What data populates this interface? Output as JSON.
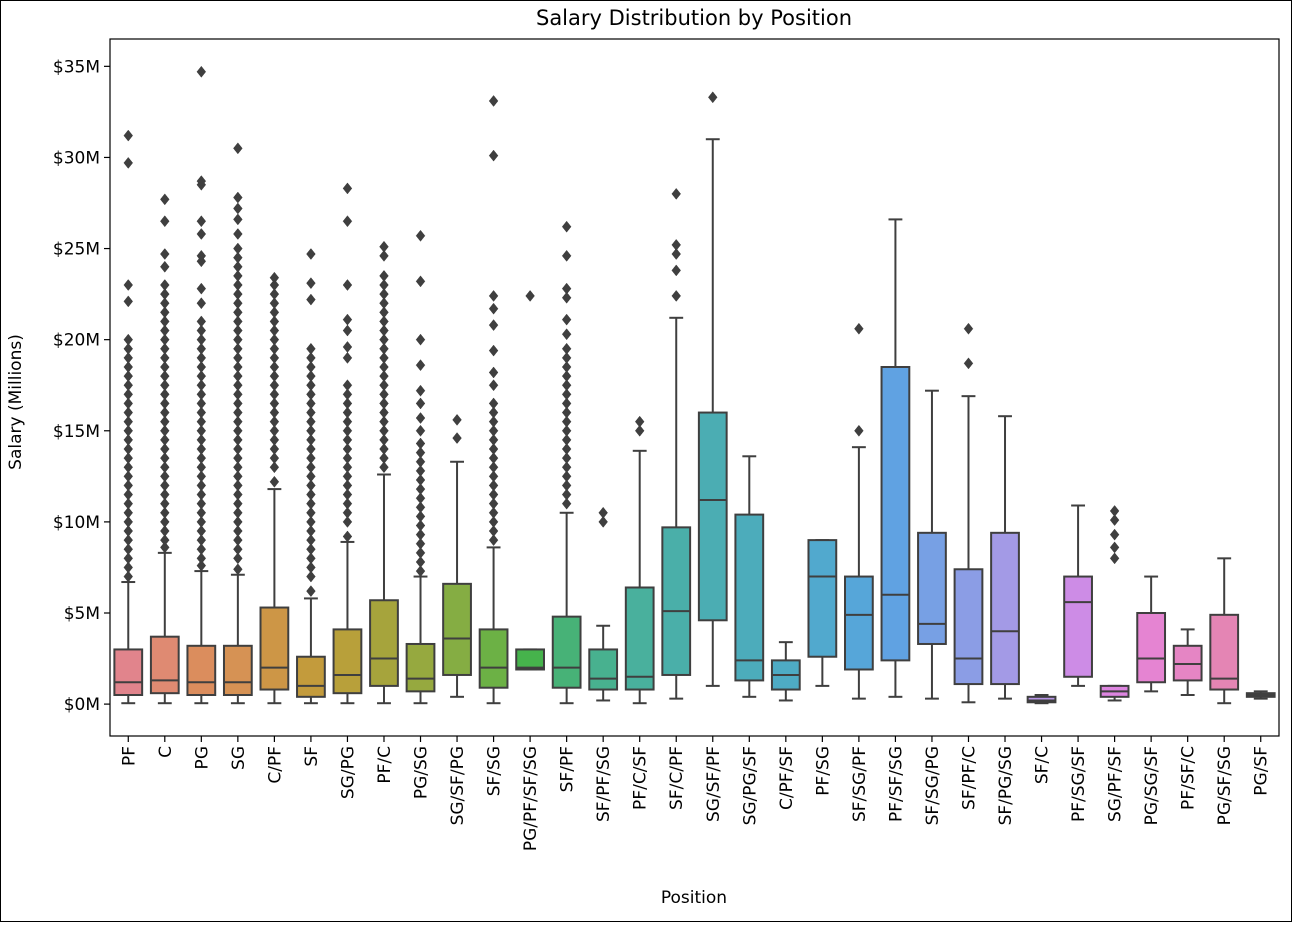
{
  "chart_data": {
    "type": "box",
    "title": "Salary Distribution by Position",
    "xlabel": "Position",
    "ylabel": "Salary (Millions)",
    "ylim": [
      -1.75,
      36.5
    ],
    "yticks": [
      {
        "value": 0,
        "label": "$0M"
      },
      {
        "value": 5,
        "label": "$5M"
      },
      {
        "value": 10,
        "label": "$10M"
      },
      {
        "value": 15,
        "label": "$15M"
      },
      {
        "value": 20,
        "label": "$20M"
      },
      {
        "value": 25,
        "label": "$25M"
      },
      {
        "value": 30,
        "label": "$30M"
      },
      {
        "value": 35,
        "label": "$35M"
      }
    ],
    "grid": false,
    "legend": "none",
    "unit_note": "values in millions of dollars",
    "boxes": [
      {
        "category": "PF",
        "color": "#e1848c",
        "whisker_low": 0.05,
        "q1": 0.5,
        "median": 1.2,
        "q3": 3.0,
        "whisker_high": 6.7,
        "outliers": [
          7.0,
          7.5,
          8,
          8.5,
          9,
          9.5,
          10,
          10.5,
          11,
          11.5,
          12,
          12.5,
          13,
          13.5,
          14,
          14.5,
          15,
          15.5,
          16,
          16.5,
          17,
          17.5,
          18,
          18.5,
          19,
          19.5,
          20,
          22.1,
          23.0,
          29.7,
          31.2
        ]
      },
      {
        "category": "C",
        "color": "#df8a72",
        "whisker_low": 0.05,
        "q1": 0.6,
        "median": 1.3,
        "q3": 3.7,
        "whisker_high": 8.3,
        "outliers": [
          8.6,
          9,
          9.5,
          10,
          10.5,
          11,
          11.5,
          12,
          12.5,
          13,
          13.5,
          14,
          14.5,
          15,
          15.5,
          16,
          16.5,
          17,
          17.5,
          18,
          18.5,
          19,
          19.5,
          20,
          20.5,
          21,
          21.5,
          22,
          22.5,
          23,
          24,
          24.7,
          26.5,
          27.7
        ]
      },
      {
        "category": "PG",
        "color": "#db8d5d",
        "whisker_low": 0.05,
        "q1": 0.5,
        "median": 1.2,
        "q3": 3.2,
        "whisker_high": 7.3,
        "outliers": [
          7.6,
          8,
          8.5,
          9,
          9.5,
          10,
          10.5,
          11,
          11.5,
          12,
          12.5,
          13,
          13.5,
          14,
          14.5,
          15,
          15.5,
          16,
          16.5,
          17,
          17.5,
          18,
          18.5,
          19,
          19.5,
          20,
          20.5,
          21,
          22,
          22.8,
          24.3,
          24.6,
          25.8,
          26.5,
          28.5,
          28.7,
          34.7
        ]
      },
      {
        "category": "SG",
        "color": "#d69254",
        "whisker_low": 0.05,
        "q1": 0.5,
        "median": 1.2,
        "q3": 3.2,
        "whisker_high": 7.1,
        "outliers": [
          7.4,
          8,
          8.5,
          9,
          9.5,
          10,
          10.5,
          11,
          11.5,
          12,
          12.5,
          13,
          13.5,
          14,
          14.5,
          15,
          15.5,
          16,
          16.5,
          17,
          17.5,
          18,
          18.5,
          19,
          19.5,
          20,
          20.5,
          21,
          21.5,
          22,
          22.5,
          23,
          23.5,
          24,
          24.5,
          25,
          25.8,
          26.6,
          27.2,
          27.8,
          30.5
        ]
      },
      {
        "category": "C/PF",
        "color": "#cd9646",
        "whisker_low": 0.05,
        "q1": 0.8,
        "median": 2.0,
        "q3": 5.3,
        "whisker_high": 11.8,
        "outliers": [
          12.2,
          13,
          13.5,
          14,
          14.5,
          15,
          15.5,
          16,
          16.5,
          17,
          17.5,
          18,
          18.5,
          19,
          19.5,
          20,
          20.5,
          21,
          21.5,
          22,
          22.5,
          23,
          23.4
        ]
      },
      {
        "category": "SF",
        "color": "#c39b3c",
        "whisker_low": 0.05,
        "q1": 0.4,
        "median": 1.0,
        "q3": 2.6,
        "whisker_high": 5.8,
        "outliers": [
          6.2,
          7,
          7.5,
          8,
          8.5,
          9,
          9.5,
          10,
          10.5,
          11,
          11.5,
          12,
          12.5,
          13,
          13.5,
          14,
          14.5,
          15,
          15.5,
          16,
          16.5,
          17,
          17.5,
          18,
          18.5,
          19,
          19.5,
          22.2,
          23.1,
          24.7
        ]
      },
      {
        "category": "SG/PG",
        "color": "#b8a03a",
        "whisker_low": 0.05,
        "q1": 0.6,
        "median": 1.6,
        "q3": 4.1,
        "whisker_high": 8.9,
        "outliers": [
          9.2,
          10,
          10.5,
          11,
          11.5,
          12,
          12.5,
          13,
          13.5,
          14,
          14.5,
          15,
          15.5,
          16,
          16.5,
          17,
          17.5,
          19,
          19.6,
          20.5,
          21.1,
          23.0,
          26.5,
          28.3
        ]
      },
      {
        "category": "PF/C",
        "color": "#a6a43c",
        "whisker_low": 0.05,
        "q1": 1.0,
        "median": 2.5,
        "q3": 5.7,
        "whisker_high": 12.6,
        "outliers": [
          13,
          13.5,
          14,
          14.5,
          15,
          15.5,
          16,
          16.5,
          17,
          17.5,
          18,
          18.5,
          19,
          19.5,
          20,
          20.5,
          21,
          21.5,
          22,
          22.5,
          23,
          23.5,
          24.6,
          25.1
        ]
      },
      {
        "category": "PG/SG",
        "color": "#96a93f",
        "whisker_low": 0.05,
        "q1": 0.7,
        "median": 1.4,
        "q3": 3.3,
        "whisker_high": 7.0,
        "outliers": [
          7.3,
          7.8,
          8.3,
          8.8,
          9.3,
          9.8,
          10.3,
          10.8,
          11.3,
          11.8,
          12.3,
          12.8,
          13.3,
          13.8,
          14.3,
          15.0,
          15.7,
          16.5,
          17.2,
          18.6,
          20.0,
          23.2,
          25.7
        ]
      },
      {
        "category": "SG/SF/PG",
        "color": "#85ad43",
        "whisker_low": 0.4,
        "q1": 1.6,
        "median": 3.6,
        "q3": 6.6,
        "whisker_high": 13.3,
        "outliers": [
          14.6,
          15.6
        ]
      },
      {
        "category": "SF/SG",
        "color": "#6cb145",
        "whisker_low": 0.05,
        "q1": 0.9,
        "median": 2.0,
        "q3": 4.1,
        "whisker_high": 8.6,
        "outliers": [
          9,
          9.5,
          10,
          10.5,
          11,
          11.5,
          12,
          12.5,
          13,
          13.5,
          14,
          14.5,
          15,
          15.5,
          16,
          16.5,
          17.5,
          18.2,
          19.4,
          20.8,
          21.7,
          22.4,
          30.1,
          33.1
        ]
      },
      {
        "category": "PG/PF/SF/SG",
        "color": "#46b34c",
        "whisker_low": 1.9,
        "q1": 1.9,
        "median": 2.0,
        "q3": 3.0,
        "whisker_high": 3.0,
        "outliers": [
          22.4
        ]
      },
      {
        "category": "SF/PF",
        "color": "#47b277",
        "whisker_low": 0.05,
        "q1": 0.9,
        "median": 2.0,
        "q3": 4.8,
        "whisker_high": 10.5,
        "outliers": [
          11,
          11.5,
          12,
          12.5,
          13,
          13.5,
          14,
          14.5,
          15,
          15.5,
          16,
          16.5,
          17,
          17.5,
          18,
          18.5,
          19,
          19.5,
          20.3,
          21.1,
          22.3,
          22.8,
          24.6,
          26.2
        ]
      },
      {
        "category": "SF/PF/SG",
        "color": "#48b18f",
        "whisker_low": 0.2,
        "q1": 0.8,
        "median": 1.4,
        "q3": 3.0,
        "whisker_high": 4.3,
        "outliers": [
          10.0,
          10.5
        ]
      },
      {
        "category": "PF/C/SF",
        "color": "#49b09d",
        "whisker_low": 0.05,
        "q1": 0.8,
        "median": 1.5,
        "q3": 6.4,
        "whisker_high": 13.9,
        "outliers": [
          15.0,
          15.5
        ]
      },
      {
        "category": "SF/C/PF",
        "color": "#4aafa9",
        "whisker_low": 0.3,
        "q1": 1.6,
        "median": 5.1,
        "q3": 9.7,
        "whisker_high": 21.2,
        "outliers": [
          22.4,
          23.8,
          24.7,
          25.2,
          28.0
        ]
      },
      {
        "category": "SG/SF/PF",
        "color": "#4badb3",
        "whisker_low": 1.0,
        "q1": 4.6,
        "median": 11.2,
        "q3": 16.0,
        "whisker_high": 31.0,
        "outliers": [
          33.3
        ]
      },
      {
        "category": "SG/PG/SF",
        "color": "#4cacbb",
        "whisker_low": 0.4,
        "q1": 1.3,
        "median": 2.4,
        "q3": 10.4,
        "whisker_high": 13.6,
        "outliers": []
      },
      {
        "category": "C/PF/SF",
        "color": "#4eabc4",
        "whisker_low": 0.2,
        "q1": 0.8,
        "median": 1.6,
        "q3": 2.4,
        "whisker_high": 3.4,
        "outliers": []
      },
      {
        "category": "PF/SG",
        "color": "#51a9ce",
        "whisker_low": 1.0,
        "q1": 2.6,
        "median": 7.0,
        "q3": 9.0,
        "whisker_high": 9.0,
        "outliers": []
      },
      {
        "category": "SF/SG/PF",
        "color": "#56a6d9",
        "whisker_low": 0.3,
        "q1": 1.9,
        "median": 4.9,
        "q3": 7.0,
        "whisker_high": 14.1,
        "outliers": [
          15.0,
          20.6
        ]
      },
      {
        "category": "PF/SF/SG",
        "color": "#60a2e2",
        "whisker_low": 0.4,
        "q1": 2.4,
        "median": 6.0,
        "q3": 18.5,
        "whisker_high": 26.6,
        "outliers": []
      },
      {
        "category": "SF/SG/PG",
        "color": "#77a0e4",
        "whisker_low": 0.3,
        "q1": 3.3,
        "median": 4.4,
        "q3": 9.4,
        "whisker_high": 17.2,
        "outliers": []
      },
      {
        "category": "SF/PF/C",
        "color": "#8b9de5",
        "whisker_low": 0.1,
        "q1": 1.1,
        "median": 2.5,
        "q3": 7.4,
        "whisker_high": 16.9,
        "outliers": [
          18.7,
          20.6
        ]
      },
      {
        "category": "SF/PG/SG",
        "color": "#a39ae6",
        "whisker_low": 0.3,
        "q1": 1.1,
        "median": 4.0,
        "q3": 9.4,
        "whisker_high": 15.8,
        "outliers": []
      },
      {
        "category": "SF/C",
        "color": "#b796e6",
        "whisker_low": 0.05,
        "q1": 0.1,
        "median": 0.2,
        "q3": 0.4,
        "whisker_high": 0.5,
        "outliers": []
      },
      {
        "category": "PF/SG/SF",
        "color": "#cd8ce6",
        "whisker_low": 1.0,
        "q1": 1.5,
        "median": 5.6,
        "q3": 7.0,
        "whisker_high": 10.9,
        "outliers": []
      },
      {
        "category": "SG/PF/SF",
        "color": "#dd85e0",
        "whisker_low": 0.2,
        "q1": 0.4,
        "median": 0.7,
        "q3": 1.0,
        "whisker_high": 1.0,
        "outliers": [
          8.0,
          8.6,
          9.3,
          10.1,
          10.6
        ]
      },
      {
        "category": "PG/SG/SF",
        "color": "#e584d2",
        "whisker_low": 0.7,
        "q1": 1.2,
        "median": 2.5,
        "q3": 5.0,
        "whisker_high": 7.0,
        "outliers": []
      },
      {
        "category": "PF/SF/C",
        "color": "#e585c4",
        "whisker_low": 0.5,
        "q1": 1.3,
        "median": 2.2,
        "q3": 3.2,
        "whisker_high": 4.1,
        "outliers": []
      },
      {
        "category": "PG/SF/SG",
        "color": "#e485b4",
        "whisker_low": 0.05,
        "q1": 0.8,
        "median": 1.4,
        "q3": 4.9,
        "whisker_high": 8.0,
        "outliers": []
      },
      {
        "category": "PG/SF",
        "color": "#e285a3",
        "whisker_low": 0.3,
        "q1": 0.4,
        "median": 0.5,
        "q3": 0.6,
        "whisker_high": 0.7,
        "outliers": []
      }
    ]
  }
}
